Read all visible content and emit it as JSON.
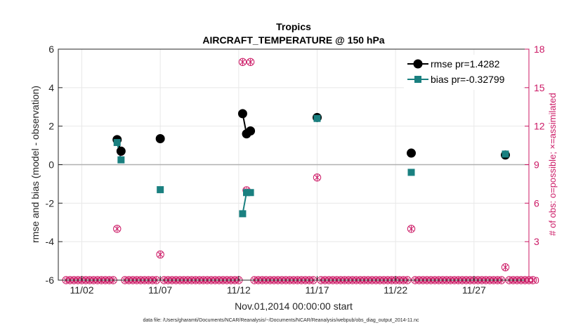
{
  "chart_data": {
    "type": "line",
    "title": "Tropics",
    "subtitle": "AIRCRAFT_TEMPERATURE @ 150 hPa",
    "xlabel": "Nov.01,2014 00:00:00 start",
    "ylabel": "rmse and bias (model - observation)",
    "y2label": "# of obs: o=possible; ×=assimilated",
    "footnote": "data file: /Users/gharamti/Documents/NCAR/Reanalysis/~/Documents/NCAR/Reanalysis/webpub/obs_diag_output_2014-11.nc",
    "xlim": [
      0.5,
      30.5
    ],
    "ylim": [
      -6,
      6
    ],
    "y2lim": [
      0,
      18
    ],
    "x_ticks": [
      2,
      7,
      12,
      17,
      22,
      27
    ],
    "x_tick_labels": [
      "11/02",
      "11/07",
      "11/12",
      "11/17",
      "11/22",
      "11/27"
    ],
    "y_ticks": [
      -6,
      -4,
      -2,
      0,
      2,
      4,
      6
    ],
    "y_tick_labels": [
      "-6",
      "-4",
      "-2",
      "0",
      "2",
      "4",
      "6"
    ],
    "y2_ticks": [
      0,
      3,
      6,
      9,
      12,
      15,
      18
    ],
    "y2_tick_labels": [
      "0",
      "3",
      "6",
      "9",
      "12",
      "15",
      "18"
    ],
    "legend_position": "top-right",
    "series": [
      {
        "name": "rmse pr=1.4282",
        "color": "#000000",
        "axis": "left",
        "points": [
          [
            4.25,
            1.3
          ],
          [
            4.5,
            0.7
          ],
          [
            7.0,
            1.35
          ],
          [
            12.25,
            2.65
          ],
          [
            12.5,
            1.6
          ],
          [
            12.75,
            1.75
          ],
          [
            17.0,
            2.45
          ],
          [
            23.0,
            0.6
          ],
          [
            29.0,
            0.5
          ]
        ]
      },
      {
        "name": "bias pr=-0.32799",
        "color": "#1a8080",
        "axis": "left",
        "points": [
          [
            4.25,
            1.15
          ],
          [
            4.5,
            0.25
          ],
          [
            7.0,
            -1.3
          ],
          [
            12.25,
            -2.55
          ],
          [
            12.5,
            -1.45
          ],
          [
            12.75,
            -1.45
          ],
          [
            17.0,
            2.4
          ],
          [
            23.0,
            -0.4
          ],
          [
            29.0,
            0.55
          ]
        ]
      },
      {
        "name": "# obs possible / assimilated",
        "color": "#cc1a66",
        "axis": "right",
        "points": [
          [
            4.25,
            4
          ],
          [
            4.5,
            10
          ],
          [
            7.0,
            2
          ],
          [
            12.25,
            17
          ],
          [
            12.5,
            7
          ],
          [
            12.75,
            17
          ],
          [
            17.0,
            8
          ],
          [
            23.0,
            4
          ],
          [
            29.0,
            1
          ]
        ]
      }
    ]
  }
}
